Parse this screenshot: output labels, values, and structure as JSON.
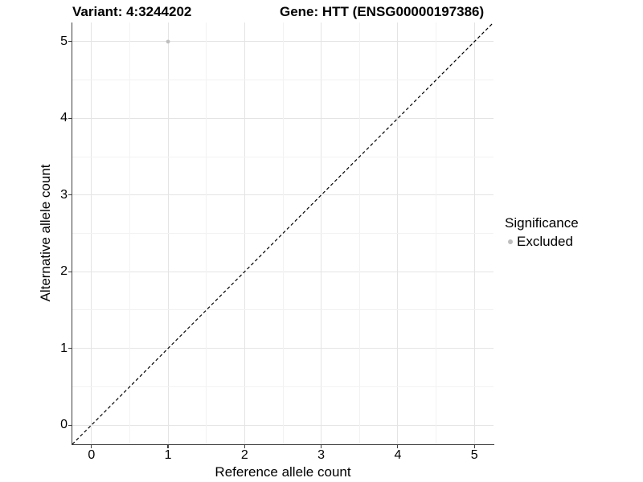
{
  "chart_data": {
    "type": "scatter",
    "title": "Variant: 4:3244202        Gene: HTT (ENSG00000197386)",
    "title_parts": {
      "variant": "Variant: 4:3244202",
      "gene": "Gene: HTT (ENSG00000197386)"
    },
    "xlabel": "Reference allele count",
    "ylabel": "Alternative allele count",
    "xlim": [
      -0.25,
      5.25
    ],
    "ylim": [
      -0.25,
      5.25
    ],
    "xticks": [
      0,
      1,
      2,
      3,
      4,
      5
    ],
    "yticks": [
      0,
      1,
      2,
      3,
      4,
      5
    ],
    "xticks_minor": [
      0.5,
      1.5,
      2.5,
      3.5,
      4.5
    ],
    "yticks_minor": [
      0.5,
      1.5,
      2.5,
      3.5,
      4.5
    ],
    "grid": "major+minor",
    "series": [
      {
        "name": "Excluded",
        "color": "#bebebe",
        "points": [
          {
            "x": 1,
            "y": 5
          }
        ]
      }
    ],
    "reference_line": {
      "kind": "identity",
      "slope": 1,
      "intercept": 0,
      "style": "dashed",
      "color": "#000000"
    },
    "legend": {
      "title": "Significance",
      "position": "right",
      "items": [
        {
          "label": "Excluded",
          "color": "#bebebe"
        }
      ]
    },
    "colors": {
      "background": "#ffffff",
      "grid_major": "#e4e4e4",
      "grid_minor": "#f2f2f2",
      "axis_line": "#404040",
      "text": "#000000",
      "point": "#bebebe",
      "reference_line": "#000000"
    }
  }
}
